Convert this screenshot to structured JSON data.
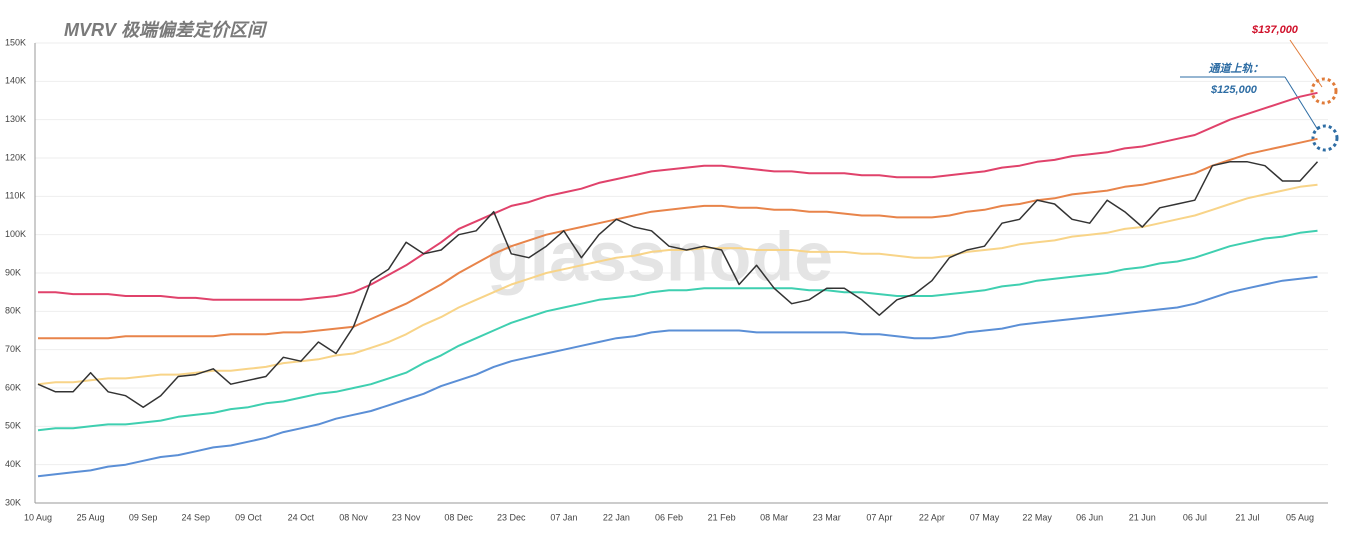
{
  "chart_data": {
    "type": "line",
    "title": "MVRV 极端偏差定价区间",
    "annotations": [
      "$137,000",
      "通道上轨：",
      "$125,000",
      "glassnode"
    ],
    "categories": [
      "10 Aug",
      null,
      null,
      "25 Aug",
      null,
      null,
      "09 Sep",
      null,
      null,
      "24 Sep",
      null,
      null,
      "09 Oct",
      null,
      null,
      "24 Oct",
      null,
      null,
      "08 Nov",
      null,
      null,
      "23 Nov",
      null,
      null,
      "08 Dec",
      null,
      null,
      "23 Dec",
      null,
      null,
      "07 Jan",
      null,
      null,
      "22 Jan",
      null,
      null,
      "06 Feb",
      null,
      null,
      "21 Feb",
      null,
      null,
      "08 Mar",
      null,
      null,
      "23 Mar",
      null,
      null,
      "07 Apr",
      null,
      null,
      "22 Apr",
      null,
      null,
      "07 May",
      null,
      null,
      "22 May",
      null,
      null,
      "06 Jun",
      null,
      null,
      "21 Jun",
      null,
      null,
      "06 Jul",
      null,
      null,
      "21 Jul",
      null,
      null,
      "05 Aug",
      null
    ],
    "series": [
      {
        "color": "#e0426b",
        "values": [
          85000,
          85000,
          84500,
          84500,
          84500,
          84000,
          84000,
          84000,
          83500,
          83500,
          83000,
          83000,
          83000,
          83000,
          83000,
          83000,
          83500,
          84000,
          85000,
          87000,
          89500,
          92000,
          95000,
          98000,
          101500,
          103500,
          105500,
          107500,
          108500,
          110000,
          111000,
          112000,
          113500,
          114500,
          115500,
          116500,
          117000,
          117500,
          118000,
          118000,
          117500,
          117000,
          116500,
          116500,
          116000,
          116000,
          116000,
          115500,
          115500,
          115000,
          115000,
          115000,
          115500,
          116000,
          116500,
          117500,
          118000,
          119000,
          119500,
          120500,
          121000,
          121500,
          122500,
          123000,
          124000,
          125000,
          126000,
          128000,
          130000,
          131500,
          133000,
          134500,
          136000,
          137000
        ]
      },
      {
        "color": "#e8844a",
        "values": [
          73000,
          73000,
          73000,
          73000,
          73000,
          73500,
          73500,
          73500,
          73500,
          73500,
          73500,
          74000,
          74000,
          74000,
          74500,
          74500,
          75000,
          75500,
          76000,
          78000,
          80000,
          82000,
          84500,
          87000,
          90000,
          92500,
          95000,
          97000,
          98500,
          100000,
          101000,
          102000,
          103000,
          104000,
          105000,
          106000,
          106500,
          107000,
          107500,
          107500,
          107000,
          107000,
          106500,
          106500,
          106000,
          106000,
          105500,
          105000,
          105000,
          104500,
          104500,
          104500,
          105000,
          106000,
          106500,
          107500,
          108000,
          109000,
          109500,
          110500,
          111000,
          111500,
          112500,
          113000,
          114000,
          115000,
          116000,
          118000,
          119500,
          121000,
          122000,
          123000,
          124000,
          125000
        ]
      },
      {
        "color": "#f8d488",
        "values": [
          61000,
          61500,
          61500,
          62000,
          62500,
          62500,
          63000,
          63500,
          63500,
          64000,
          64500,
          64500,
          65000,
          65500,
          66500,
          67000,
          67500,
          68500,
          69000,
          70500,
          72000,
          74000,
          76500,
          78500,
          81000,
          83000,
          85000,
          87000,
          88500,
          90000,
          91000,
          92000,
          93000,
          94000,
          94500,
          95500,
          96000,
          96000,
          96500,
          96500,
          96500,
          96000,
          96000,
          96000,
          95500,
          95500,
          95500,
          95000,
          95000,
          94500,
          94000,
          94000,
          94500,
          95500,
          96000,
          96500,
          97500,
          98000,
          98500,
          99500,
          100000,
          100500,
          101500,
          102000,
          103000,
          104000,
          105000,
          106500,
          108000,
          109500,
          110500,
          111500,
          112500,
          113000
        ]
      },
      {
        "color": "#3fcfb0",
        "values": [
          49000,
          49500,
          49500,
          50000,
          50500,
          50500,
          51000,
          51500,
          52500,
          53000,
          53500,
          54500,
          55000,
          56000,
          56500,
          57500,
          58500,
          59000,
          60000,
          61000,
          62500,
          64000,
          66500,
          68500,
          71000,
          73000,
          75000,
          77000,
          78500,
          80000,
          81000,
          82000,
          83000,
          83500,
          84000,
          85000,
          85500,
          85500,
          86000,
          86000,
          86000,
          86000,
          86000,
          86000,
          85500,
          85500,
          85000,
          85000,
          84500,
          84000,
          84000,
          84000,
          84500,
          85000,
          85500,
          86500,
          87000,
          88000,
          88500,
          89000,
          89500,
          90000,
          91000,
          91500,
          92500,
          93000,
          94000,
          95500,
          97000,
          98000,
          99000,
          99500,
          100500,
          101000
        ]
      },
      {
        "color": "#5b8fd6",
        "values": [
          37000,
          37500,
          38000,
          38500,
          39500,
          40000,
          41000,
          42000,
          42500,
          43500,
          44500,
          45000,
          46000,
          47000,
          48500,
          49500,
          50500,
          52000,
          53000,
          54000,
          55500,
          57000,
          58500,
          60500,
          62000,
          63500,
          65500,
          67000,
          68000,
          69000,
          70000,
          71000,
          72000,
          73000,
          73500,
          74500,
          75000,
          75000,
          75000,
          75000,
          75000,
          74500,
          74500,
          74500,
          74500,
          74500,
          74500,
          74000,
          74000,
          73500,
          73000,
          73000,
          73500,
          74500,
          75000,
          75500,
          76500,
          77000,
          77500,
          78000,
          78500,
          79000,
          79500,
          80000,
          80500,
          81000,
          82000,
          83500,
          85000,
          86000,
          87000,
          88000,
          88500,
          89000
        ]
      },
      {
        "color": "#333333",
        "values": [
          61000,
          59000,
          59000,
          64000,
          59000,
          58000,
          55000,
          58000,
          63000,
          63500,
          65000,
          61000,
          62000,
          63000,
          68000,
          67000,
          72000,
          69000,
          76000,
          88000,
          91000,
          98000,
          95000,
          96000,
          100000,
          101000,
          106000,
          95000,
          94000,
          97000,
          101000,
          94000,
          100000,
          104000,
          102000,
          101000,
          97000,
          96000,
          97000,
          96000,
          87000,
          92000,
          86000,
          82000,
          83000,
          86000,
          86000,
          83000,
          79000,
          83000,
          84500,
          88000,
          94000,
          96000,
          97000,
          103000,
          104000,
          109000,
          108000,
          104000,
          103000,
          109000,
          106000,
          102000,
          107000,
          108000,
          109000,
          118000,
          119000,
          119000,
          118000,
          114000,
          114000,
          119000
        ]
      }
    ],
    "ylim": [
      30000,
      150000
    ],
    "yticks": [
      {
        "value": 30000,
        "label": "30K"
      },
      {
        "value": 40000,
        "label": "40K"
      },
      {
        "value": 50000,
        "label": "50K"
      },
      {
        "value": 60000,
        "label": "60K"
      },
      {
        "value": 70000,
        "label": "70K"
      },
      {
        "value": 80000,
        "label": "80K"
      },
      {
        "value": 90000,
        "label": "90K"
      },
      {
        "value": 100000,
        "label": "100K"
      },
      {
        "value": 110000,
        "label": "110K"
      },
      {
        "value": 120000,
        "label": "120K"
      },
      {
        "value": 130000,
        "label": "130K"
      },
      {
        "value": 140000,
        "label": "140K"
      },
      {
        "value": 150000,
        "label": "150K"
      }
    ],
    "grid": true
  }
}
